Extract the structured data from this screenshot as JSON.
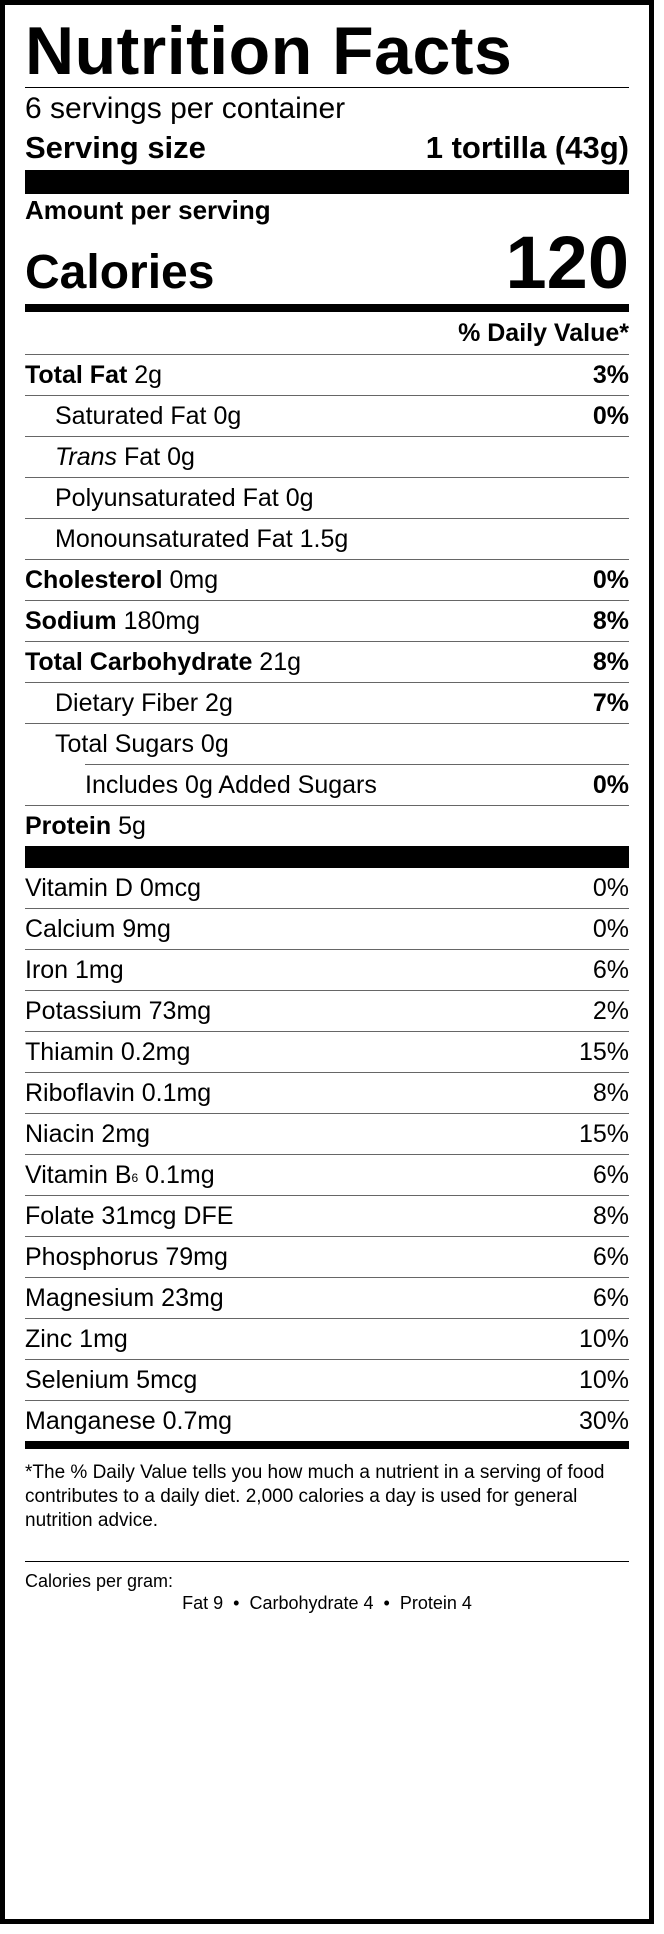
{
  "title": "Nutrition Facts",
  "servings_per_container": "6 servings per container",
  "serving_size_label": "Serving size",
  "serving_size_value": "1 tortilla (43g)",
  "amount_per_serving": "Amount per serving",
  "calories_label": "Calories",
  "calories_value": "120",
  "daily_value_header": "% Daily Value*",
  "nutrients": [
    {
      "name": "Total Fat",
      "amount": "2g",
      "dv": "3%"
    },
    {
      "name": "Saturated Fat",
      "amount": "0g",
      "dv": "0%"
    },
    {
      "name": "Trans",
      "name_rest": "Fat",
      "amount": "0g",
      "dv": ""
    },
    {
      "name": "Polyunsaturated Fat",
      "amount": "0g",
      "dv": ""
    },
    {
      "name": "Monounsaturated Fat",
      "amount": "1.5g",
      "dv": ""
    },
    {
      "name": "Cholesterol",
      "amount": "0mg",
      "dv": "0%"
    },
    {
      "name": "Sodium",
      "amount": "180mg",
      "dv": "8%"
    },
    {
      "name": "Total Carbohydrate",
      "amount": "21g",
      "dv": "8%"
    },
    {
      "name": "Dietary Fiber",
      "amount": "2g",
      "dv": "7%"
    },
    {
      "name": "Total Sugars",
      "amount": "0g",
      "dv": ""
    },
    {
      "name": "Includes 0g Added Sugars",
      "amount": "",
      "dv": "0%"
    },
    {
      "name": "Protein",
      "amount": "5g",
      "dv": ""
    }
  ],
  "vitamins": [
    {
      "label": "Vitamin D 0mcg",
      "dv": "0%"
    },
    {
      "label": "Calcium 9mg",
      "dv": "0%"
    },
    {
      "label": "Iron 1mg",
      "dv": "6%"
    },
    {
      "label": "Potassium 73mg",
      "dv": "2%"
    },
    {
      "label": "Thiamin 0.2mg",
      "dv": "15%"
    },
    {
      "label": "Riboflavin 0.1mg",
      "dv": "8%"
    },
    {
      "label": "Niacin 2mg",
      "dv": "15%"
    },
    {
      "label_pre": "Vitamin B",
      "label_sub": "6",
      "label_post": " 0.1mg",
      "dv": "6%"
    },
    {
      "label": "Folate 31mcg DFE",
      "dv": "8%"
    },
    {
      "label": "Phosphorus 79mg",
      "dv": "6%"
    },
    {
      "label": "Magnesium 23mg",
      "dv": "6%"
    },
    {
      "label": "Zinc 1mg",
      "dv": "10%"
    },
    {
      "label": "Selenium 5mcg",
      "dv": "10%"
    },
    {
      "label": "Manganese 0.7mg",
      "dv": "30%"
    }
  ],
  "footnote": "*The % Daily Value tells you how much a nutrient in a serving of food contributes to a daily diet. 2,000 calories a day is used for general nutrition advice.",
  "calories_per_gram_label": "Calories per gram:",
  "calories_per_gram": "Fat 9  •  Carbohydrate 4  •  Protein 4"
}
